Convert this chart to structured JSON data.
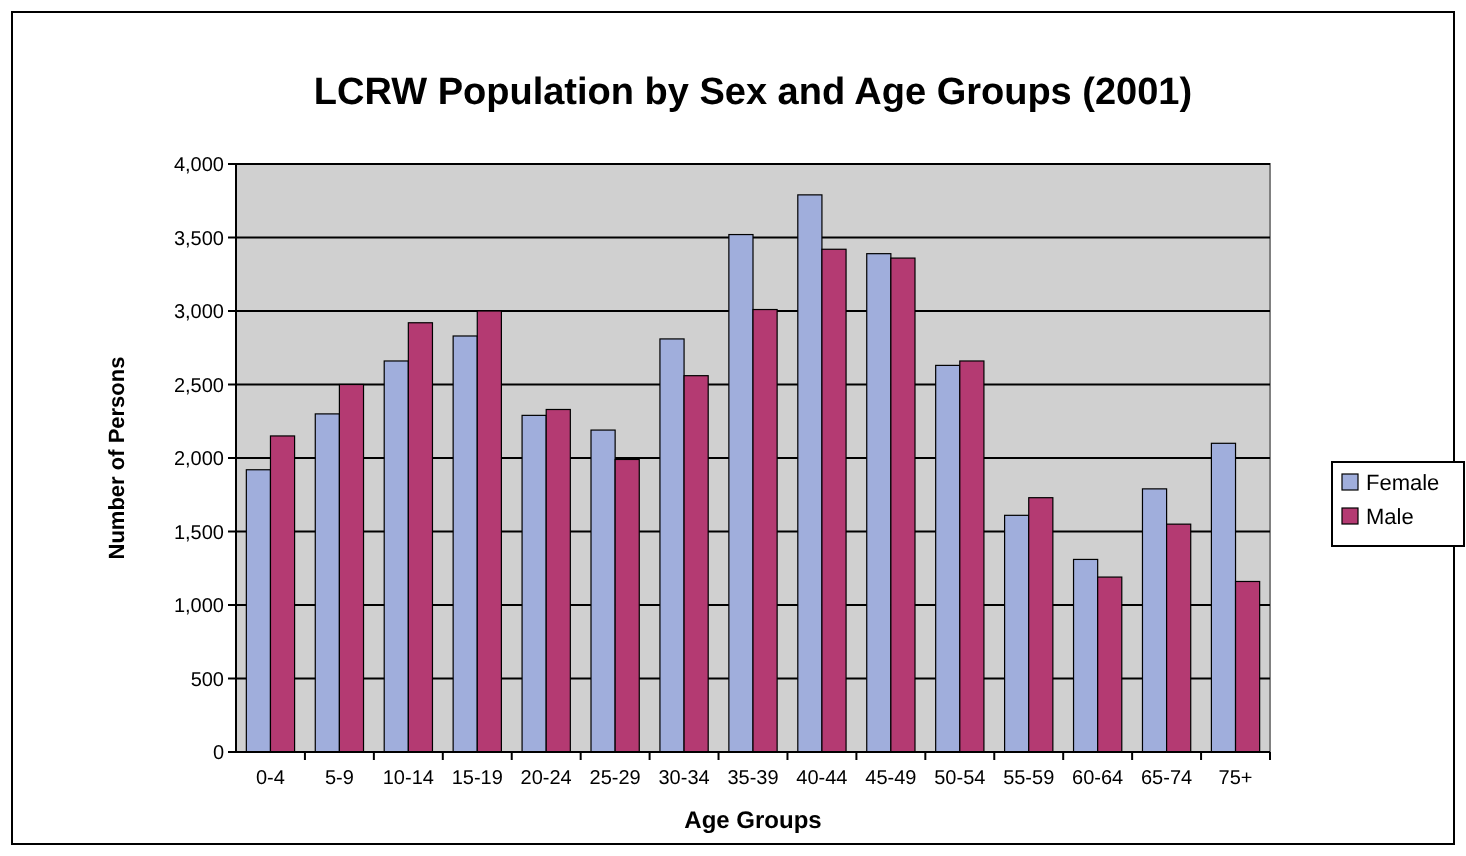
{
  "chart_data": {
    "type": "bar",
    "title": "LCRW Population by Sex and Age Groups (2001)",
    "xlabel": "Age Groups",
    "ylabel": "Number of Persons",
    "categories": [
      "0-4",
      "5-9",
      "10-14",
      "15-19",
      "20-24",
      "25-29",
      "30-34",
      "35-39",
      "40-44",
      "45-49",
      "50-54",
      "55-59",
      "60-64",
      "65-74",
      "75+"
    ],
    "series": [
      {
        "name": "Female",
        "color": "#a0aedc",
        "values": [
          1920,
          2300,
          2660,
          2830,
          2290,
          2190,
          2810,
          3520,
          3790,
          3390,
          2630,
          1610,
          1310,
          1790,
          2100
        ]
      },
      {
        "name": "Male",
        "color": "#b43a72",
        "values": [
          2150,
          2500,
          2920,
          3000,
          2330,
          1990,
          2560,
          3010,
          3420,
          3360,
          2660,
          1730,
          1190,
          1550,
          1160
        ]
      }
    ],
    "ylim": [
      0,
      4000
    ],
    "yticks": [
      {
        "value": 0,
        "label": "0"
      },
      {
        "value": 500,
        "label": "500"
      },
      {
        "value": 1000,
        "label": "1,000"
      },
      {
        "value": 1500,
        "label": "1,500"
      },
      {
        "value": 2000,
        "label": "2,000"
      },
      {
        "value": 2500,
        "label": "2,500"
      },
      {
        "value": 3000,
        "label": "3,000"
      },
      {
        "value": 3500,
        "label": "3,500"
      },
      {
        "value": 4000,
        "label": "4,000"
      }
    ],
    "grid": "y",
    "legend": "right"
  }
}
